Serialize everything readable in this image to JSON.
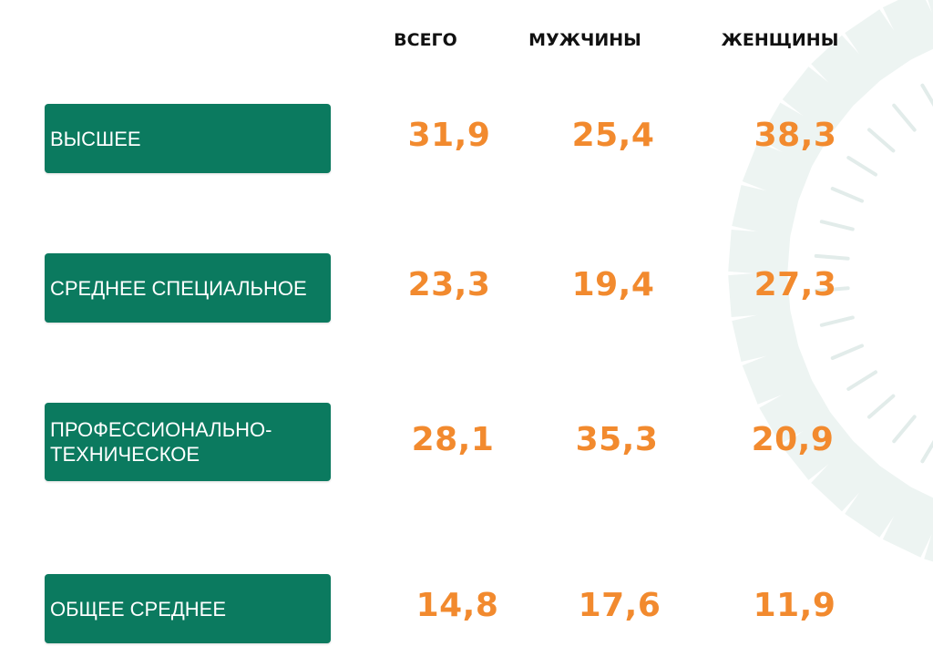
{
  "chart_data": {
    "type": "table",
    "columns": [
      "ВСЕГО",
      "МУЖЧИНЫ",
      "ЖЕНЩИНЫ"
    ],
    "rows": [
      {
        "label": "ВЫСШЕЕ",
        "values": [
          "31,9",
          "25,4",
          "38,3"
        ]
      },
      {
        "label": "СРЕДНЕЕ СПЕЦИАЛЬНОЕ",
        "values": [
          "23,3",
          "19,4",
          "27,3"
        ]
      },
      {
        "label": "ПРОФЕССИОНАЛЬНО-ТЕХНИЧЕСКОЕ",
        "values": [
          "28,1",
          "35,3",
          "20,9"
        ]
      },
      {
        "label": "ОБЩЕЕ СРЕДНЕЕ",
        "values": [
          "14,8",
          "17,6",
          "11,9"
        ]
      }
    ]
  },
  "colors": {
    "label_background": "#0b7a5f",
    "value_text": "#f28a2e",
    "decor": "#edf4f2"
  }
}
